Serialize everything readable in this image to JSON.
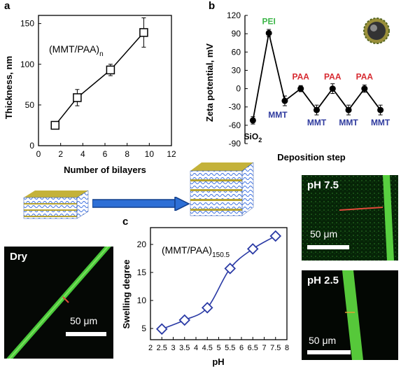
{
  "panels": {
    "a": {
      "letter": "a"
    },
    "b": {
      "letter": "b"
    },
    "c": {
      "letter": "c"
    }
  },
  "chart_data": [
    {
      "id": "a",
      "type": "line",
      "x": [
        1.5,
        3.5,
        6.5,
        9.5
      ],
      "y": [
        25,
        59,
        93,
        139
      ],
      "yerr": [
        4,
        10,
        7,
        18
      ],
      "xlabel": "Number of bilayers",
      "ylabel": "Thickness, nm",
      "annotation": {
        "main": "(MMT/PAA)",
        "sub": "n"
      },
      "xlim": [
        0,
        12
      ],
      "ylim": [
        0,
        160
      ],
      "xticks": [
        "0",
        "2",
        "4",
        "6",
        "8",
        "10",
        "12"
      ],
      "yticks": [
        "0",
        "50",
        "100",
        "150"
      ],
      "marker": "open-square",
      "color": "#000000"
    },
    {
      "id": "b",
      "type": "line",
      "x": [
        1,
        2,
        3,
        4,
        5,
        6,
        7,
        8,
        9
      ],
      "y": [
        -52,
        91,
        -20,
        0,
        -35,
        0,
        -35,
        0,
        -35
      ],
      "yerr": [
        6,
        6,
        8,
        5,
        8,
        8,
        8,
        6,
        8
      ],
      "point_labels": [
        "SiO2",
        "PEI",
        "MMT",
        "PAA",
        "MMT",
        "PAA",
        "MMT",
        "PAA",
        "MMT"
      ],
      "point_label_colors": [
        "#000000",
        "#3cb648",
        "#2e3a9e",
        "#d7282f",
        "#2e3a9e",
        "#d7282f",
        "#2e3a9e",
        "#d7282f",
        "#2e3a9e"
      ],
      "xlabel": "Deposition step",
      "ylabel": "Zeta potential, mV",
      "ylim": [
        -90,
        120
      ],
      "yticks": [
        "-90",
        "-60",
        "-30",
        "0",
        "30",
        "60",
        "90",
        "120"
      ],
      "marker": "filled-circle",
      "color": "#000000"
    },
    {
      "id": "c",
      "type": "line",
      "x": [
        2.5,
        3.5,
        4.5,
        5.5,
        6.5,
        7.5
      ],
      "y": [
        4.9,
        6.5,
        8.7,
        15.7,
        19.2,
        21.5
      ],
      "xlabel": "pH",
      "ylabel": "Swelling degree",
      "annotation": {
        "main": "(MMT/PAA)",
        "sub": "150.5"
      },
      "xlim": [
        2,
        8
      ],
      "ylim": [
        3,
        23
      ],
      "xticks": [
        "2",
        "2.5",
        "3",
        "3.5",
        "4",
        "4.5",
        "5",
        "5.5",
        "6",
        "6.5",
        "7",
        "7.5",
        "8"
      ],
      "yticks": [
        "5",
        "10",
        "15",
        "20"
      ],
      "marker": "open-diamond",
      "color": "#2a3aa5"
    }
  ],
  "micrographs": {
    "dry": {
      "label": "Dry",
      "scale": "50 μm"
    },
    "ph75": {
      "label": "pH 7.5",
      "scale": "50 μm"
    },
    "ph25": {
      "label": "pH 2.5",
      "scale": "50 μm"
    }
  }
}
